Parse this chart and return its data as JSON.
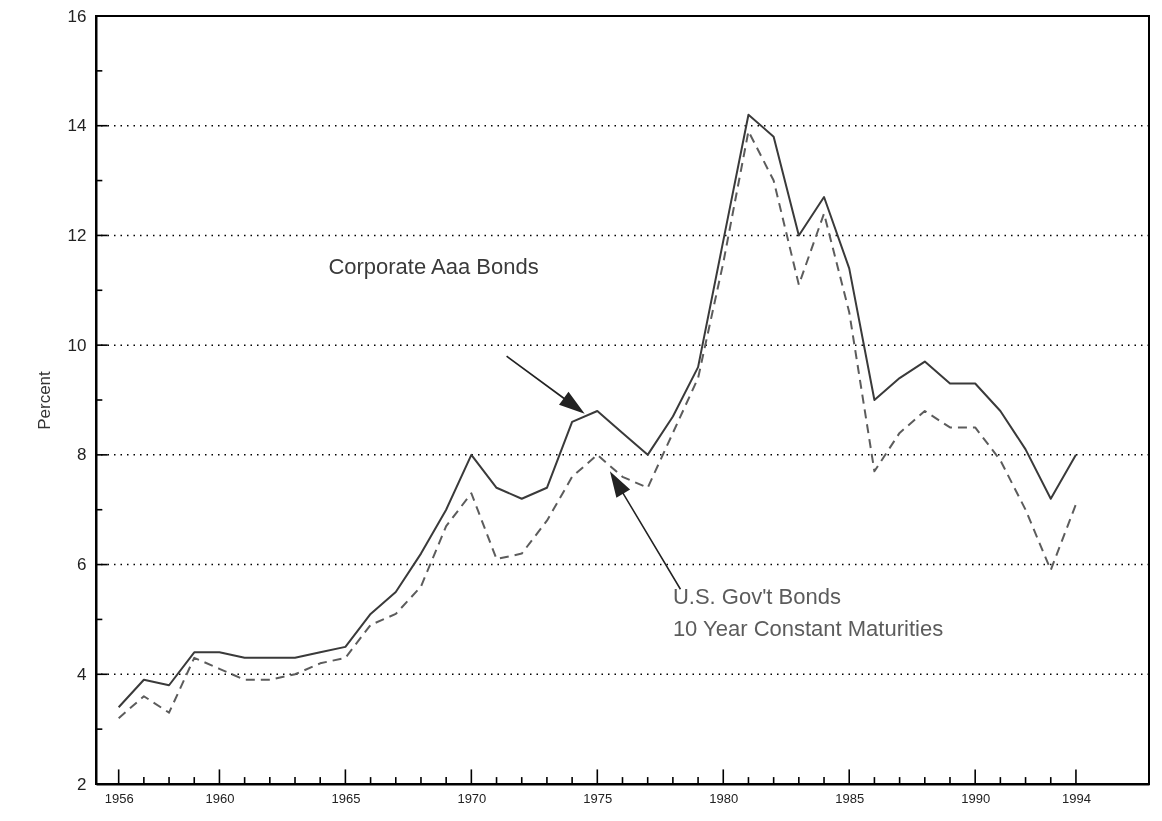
{
  "chart_data": {
    "type": "line",
    "ylabel": "Percent",
    "x": [
      1956,
      1957,
      1958,
      1959,
      1960,
      1961,
      1962,
      1963,
      1964,
      1965,
      1966,
      1967,
      1968,
      1969,
      1970,
      1971,
      1972,
      1973,
      1974,
      1975,
      1976,
      1977,
      1978,
      1979,
      1980,
      1981,
      1982,
      1983,
      1984,
      1985,
      1986,
      1987,
      1988,
      1989,
      1990,
      1991,
      1992,
      1993,
      1994
    ],
    "series": [
      {
        "name": "Corporate Aaa Bonds",
        "color": "#3a3a3a",
        "line_style": "solid",
        "values": [
          3.4,
          3.9,
          3.8,
          4.4,
          4.4,
          4.3,
          4.3,
          4.3,
          4.4,
          4.5,
          5.1,
          5.5,
          6.2,
          7.0,
          8.0,
          7.4,
          7.2,
          7.4,
          8.6,
          8.8,
          8.4,
          8.0,
          8.7,
          9.6,
          11.9,
          14.2,
          13.8,
          12.0,
          12.7,
          11.4,
          9.0,
          9.4,
          9.7,
          9.3,
          9.3,
          8.8,
          8.1,
          7.2,
          8.0
        ]
      },
      {
        "name": "U.S. Gov't Bonds\n10 Year Constant Maturities",
        "color": "#5c5c5c",
        "line_style": "dashed",
        "values": [
          3.2,
          3.6,
          3.3,
          4.3,
          4.1,
          3.9,
          3.9,
          4.0,
          4.2,
          4.3,
          4.9,
          5.1,
          5.6,
          6.7,
          7.3,
          6.1,
          6.2,
          6.8,
          7.6,
          8.0,
          7.6,
          7.4,
          8.4,
          9.4,
          11.5,
          13.9,
          13.0,
          11.1,
          12.4,
          10.6,
          7.7,
          8.4,
          8.8,
          8.5,
          8.5,
          7.9,
          7.0,
          5.9,
          7.1
        ]
      }
    ],
    "xlim": [
      1955.1,
      1996.9
    ],
    "xticks": [
      1956,
      {
        "value": 1957,
        "label": null
      },
      {
        "value": 1958,
        "label": null
      },
      {
        "value": 1959,
        "label": null
      },
      1960,
      {
        "value": 1961,
        "label": null
      },
      {
        "value": 1962,
        "label": null
      },
      {
        "value": 1963,
        "label": null
      },
      {
        "value": 1964,
        "label": null
      },
      1965,
      {
        "value": 1966,
        "label": null
      },
      {
        "value": 1967,
        "label": null
      },
      {
        "value": 1968,
        "label": null
      },
      {
        "value": 1969,
        "label": null
      },
      1970,
      {
        "value": 1971,
        "label": null
      },
      {
        "value": 1972,
        "label": null
      },
      {
        "value": 1973,
        "label": null
      },
      {
        "value": 1974,
        "label": null
      },
      1975,
      {
        "value": 1976,
        "label": null
      },
      {
        "value": 1977,
        "label": null
      },
      {
        "value": 1978,
        "label": null
      },
      {
        "value": 1979,
        "label": null
      },
      1980,
      {
        "value": 1981,
        "label": null
      },
      {
        "value": 1982,
        "label": null
      },
      {
        "value": 1983,
        "label": null
      },
      {
        "value": 1984,
        "label": null
      },
      1985,
      {
        "value": 1986,
        "label": null
      },
      {
        "value": 1987,
        "label": null
      },
      {
        "value": 1988,
        "label": null
      },
      {
        "value": 1989,
        "label": null
      },
      1990,
      {
        "value": 1991,
        "label": null
      },
      {
        "value": 1992,
        "label": null
      },
      {
        "value": 1993,
        "label": null
      },
      1994
    ],
    "ylim": [
      2,
      16
    ],
    "yticks": [
      2,
      {
        "value": 3,
        "label": null
      },
      4,
      {
        "value": 5,
        "label": null
      },
      6,
      {
        "value": 7,
        "label": null
      },
      8,
      {
        "value": 9,
        "label": null
      },
      10,
      {
        "value": 11,
        "label": null
      },
      12,
      {
        "value": 13,
        "label": null
      },
      14,
      {
        "value": 15,
        "label": null
      },
      16
    ],
    "grid": "y",
    "marker": "none"
  }
}
